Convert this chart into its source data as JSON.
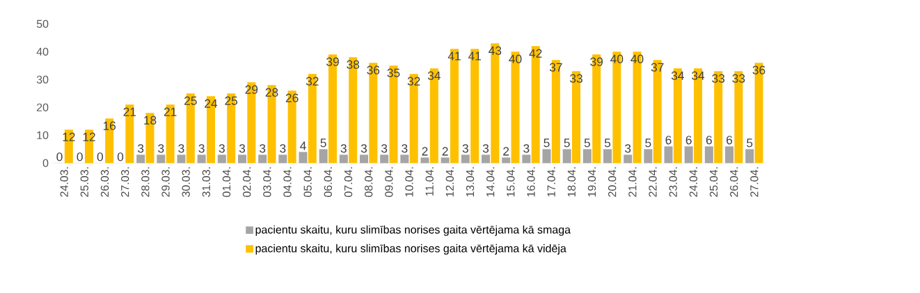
{
  "chart_data": {
    "type": "bar",
    "categories": [
      "24.03.",
      "25.03.",
      "26.03.",
      "27.03.",
      "28.03.",
      "29.03.",
      "30.03.",
      "31.03.",
      "01.04.",
      "02.04.",
      "03.04.",
      "04.04.",
      "05.04.",
      "06.04.",
      "07.04.",
      "08.04.",
      "09.04.",
      "10.04.",
      "11.04.",
      "12.04.",
      "13.04.",
      "14.04.",
      "15.04.",
      "16.04.",
      "17.04.",
      "18.04.",
      "19.04.",
      "20.04.",
      "21.04.",
      "22.04.",
      "23.04.",
      "24.04.",
      "25.04.",
      "26.04.",
      "27.04."
    ],
    "series": [
      {
        "name": "pacientu skaitu, kuru slimības norises gaita vērtējama kā smaga",
        "color": "#a5a5a5",
        "values": [
          0,
          0,
          0,
          0,
          3,
          3,
          3,
          3,
          3,
          3,
          3,
          3,
          4,
          5,
          3,
          3,
          3,
          3,
          2,
          2,
          3,
          3,
          2,
          3,
          5,
          5,
          5,
          5,
          3,
          5,
          6,
          6,
          6,
          6,
          5
        ]
      },
      {
        "name": "pacientu skaitu, kuru slimības norises gaita vērtējama kā vidēja",
        "color": "#ffc000",
        "values": [
          12,
          12,
          16,
          21,
          18,
          21,
          25,
          24,
          25,
          29,
          28,
          26,
          32,
          39,
          38,
          36,
          35,
          32,
          34,
          41,
          41,
          43,
          40,
          42,
          37,
          33,
          39,
          40,
          40,
          37,
          34,
          34,
          33,
          33,
          36
        ]
      }
    ],
    "ylim": [
      0,
      50
    ],
    "yticks": [
      0,
      10,
      20,
      30,
      40,
      50
    ],
    "data_labels": true,
    "legend": "bottom"
  }
}
